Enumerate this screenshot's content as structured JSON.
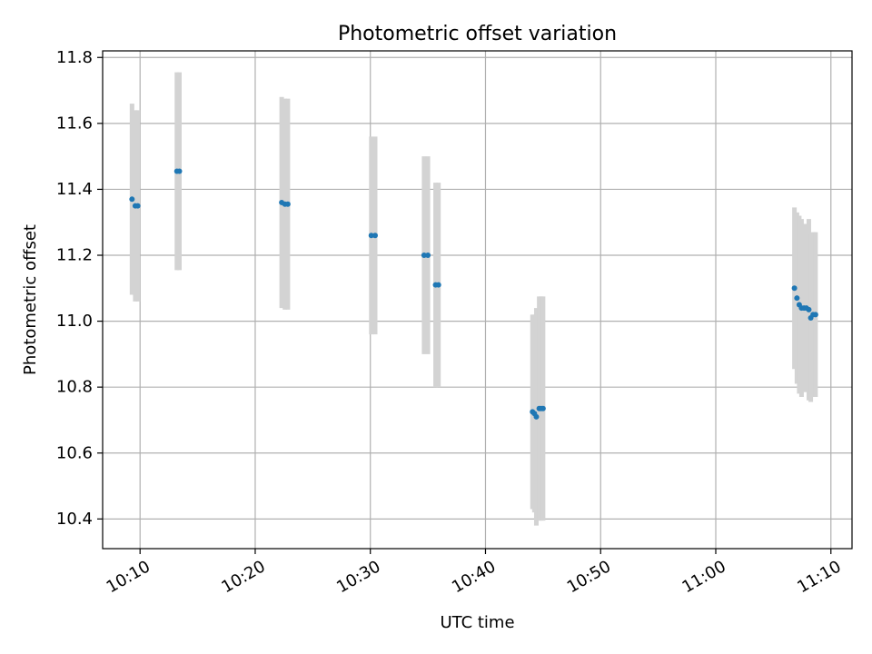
{
  "chart_data": {
    "type": "scatter",
    "title": "Photometric offset variation",
    "xlabel": "UTC time",
    "ylabel": "Photometric offset",
    "x_unit": "UTC time (HH:MM)",
    "xlim": [
      "10:06:45",
      "11:11:50"
    ],
    "ylim": [
      10.31,
      11.82
    ],
    "x_ticks": [
      "10:10",
      "10:20",
      "10:30",
      "10:40",
      "10:50",
      "11:00",
      "11:10"
    ],
    "y_ticks": [
      "10.4",
      "10.6",
      "10.8",
      "11.0",
      "11.2",
      "11.4",
      "11.6",
      "11.8"
    ],
    "grid": true,
    "point_color": "#1f77b4",
    "errorbar_color": "#d3d3d3",
    "points": [
      {
        "x": "10:09:18",
        "y": 11.37,
        "yerr": 0.29
      },
      {
        "x": "10:09:35",
        "y": 11.35,
        "yerr": 0.29
      },
      {
        "x": "10:09:48",
        "y": 11.35,
        "yerr": 0.29
      },
      {
        "x": "10:13:12",
        "y": 11.455,
        "yerr": 0.3
      },
      {
        "x": "10:13:25",
        "y": 11.455,
        "yerr": 0.3
      },
      {
        "x": "10:22:18",
        "y": 11.36,
        "yerr": 0.32
      },
      {
        "x": "10:22:35",
        "y": 11.355,
        "yerr": 0.32
      },
      {
        "x": "10:22:50",
        "y": 11.355,
        "yerr": 0.32
      },
      {
        "x": "10:30:05",
        "y": 11.26,
        "yerr": 0.3
      },
      {
        "x": "10:30:25",
        "y": 11.26,
        "yerr": 0.3
      },
      {
        "x": "10:34:40",
        "y": 11.2,
        "yerr": 0.3
      },
      {
        "x": "10:35:00",
        "y": 11.2,
        "yerr": 0.3
      },
      {
        "x": "10:35:40",
        "y": 11.11,
        "yerr": 0.31
      },
      {
        "x": "10:35:55",
        "y": 11.11,
        "yerr": 0.31
      },
      {
        "x": "10:44:05",
        "y": 10.725,
        "yerr": 0.295
      },
      {
        "x": "10:44:15",
        "y": 10.72,
        "yerr": 0.3
      },
      {
        "x": "10:44:25",
        "y": 10.71,
        "yerr": 0.33
      },
      {
        "x": "10:44:40",
        "y": 10.735,
        "yerr": 0.34
      },
      {
        "x": "10:44:50",
        "y": 10.735,
        "yerr": 0.34
      },
      {
        "x": "10:45:00",
        "y": 10.735,
        "yerr": 0.34
      },
      {
        "x": "11:06:50",
        "y": 11.1,
        "yerr": 0.245
      },
      {
        "x": "11:07:03",
        "y": 11.07,
        "yerr": 0.26
      },
      {
        "x": "11:07:15",
        "y": 11.05,
        "yerr": 0.27
      },
      {
        "x": "11:07:27",
        "y": 11.04,
        "yerr": 0.27
      },
      {
        "x": "11:07:40",
        "y": 11.04,
        "yerr": 0.255
      },
      {
        "x": "11:07:52",
        "y": 11.04,
        "yerr": 0.255
      },
      {
        "x": "11:08:05",
        "y": 11.035,
        "yerr": 0.275
      },
      {
        "x": "11:08:15",
        "y": 11.01,
        "yerr": 0.255
      },
      {
        "x": "11:08:27",
        "y": 11.02,
        "yerr": 0.25
      },
      {
        "x": "11:08:40",
        "y": 11.02,
        "yerr": 0.25
      }
    ]
  }
}
